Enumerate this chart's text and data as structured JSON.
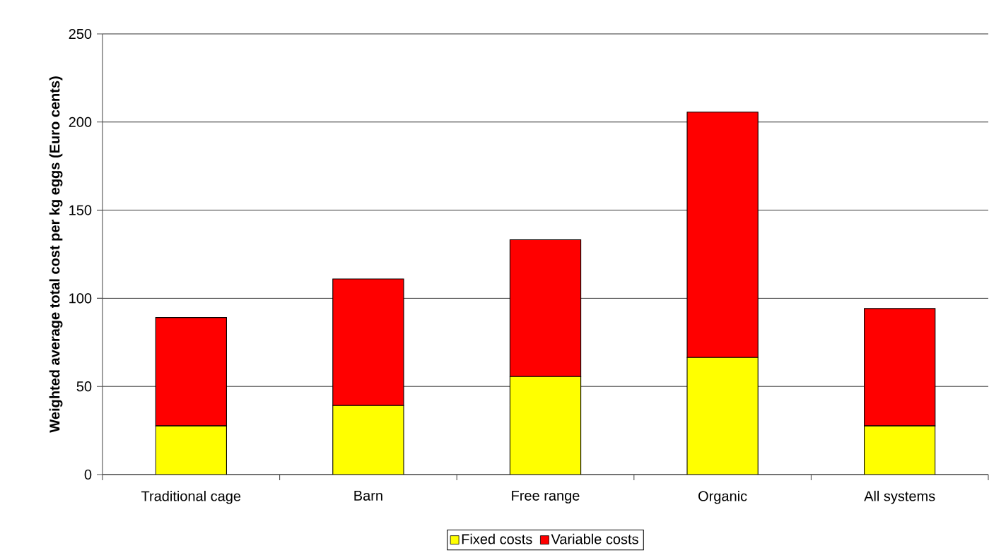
{
  "chart_data": {
    "type": "bar",
    "stacked": true,
    "ylabel": "Weighted average total cost per kg eggs (Euro cents)",
    "categories": [
      "Traditional cage",
      "Barn",
      "Free range",
      "Organic",
      "All systems"
    ],
    "series": [
      {
        "name": "Fixed costs",
        "color": "#ffff00",
        "values": [
          27.6,
          39.2,
          55.6,
          66.4,
          27.6
        ]
      },
      {
        "name": "Variable costs",
        "color": "#ff0000",
        "values": [
          61.5,
          71.8,
          77.6,
          139.2,
          66.6
        ]
      }
    ],
    "ylim": [
      0,
      250
    ],
    "yticks": [
      0,
      50,
      100,
      150,
      200,
      250
    ],
    "grid": "y",
    "legend": "bottom"
  }
}
